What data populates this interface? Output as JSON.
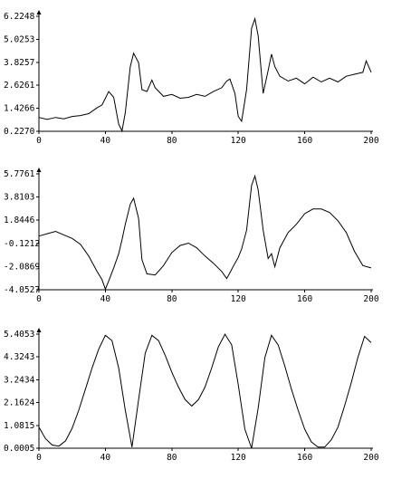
{
  "chart_data": [
    {
      "type": "line",
      "x_ticks": [
        "0",
        "40",
        "80",
        "120",
        "160",
        "200"
      ],
      "y_ticks": [
        "6.2248",
        "5.0253",
        "3.8257",
        "2.6261",
        "1.4266",
        "0.2270"
      ],
      "xlim": [
        0,
        200
      ],
      "ylim": [
        0.227,
        6.2248
      ],
      "grid": false,
      "series": [
        {
          "x": [
            0,
            5,
            10,
            15,
            20,
            25,
            30,
            35,
            38,
            40,
            42,
            45,
            48,
            50,
            52,
            55,
            57,
            60,
            62,
            65,
            68,
            70,
            75,
            80,
            85,
            90,
            95,
            100,
            105,
            110,
            113,
            115,
            118,
            120,
            122,
            125,
            128,
            130,
            132,
            135,
            138,
            140,
            142,
            145,
            150,
            155,
            160,
            165,
            170,
            175,
            180,
            185,
            190,
            195,
            197,
            200
          ],
          "y": [
            0.95,
            0.85,
            0.95,
            0.88,
            1.0,
            1.05,
            1.15,
            1.45,
            1.6,
            1.95,
            2.3,
            2.0,
            0.6,
            0.25,
            1.2,
            3.6,
            4.3,
            3.8,
            2.4,
            2.3,
            2.9,
            2.5,
            2.05,
            2.15,
            1.95,
            2.0,
            2.15,
            2.05,
            2.3,
            2.5,
            2.85,
            2.95,
            2.2,
            1.0,
            0.75,
            2.4,
            5.6,
            6.1,
            5.2,
            2.2,
            3.4,
            4.25,
            3.6,
            3.1,
            2.85,
            3.0,
            2.7,
            3.05,
            2.8,
            3.0,
            2.8,
            3.1,
            3.2,
            3.3,
            3.9,
            3.3
          ]
        }
      ]
    },
    {
      "type": "line",
      "x_ticks": [
        "0",
        "40",
        "80",
        "120",
        "160",
        "200"
      ],
      "y_ticks": [
        "5.7761",
        "3.8103",
        "1.8446",
        "-0.1212",
        "-2.0869",
        "-4.0527"
      ],
      "xlim": [
        0,
        200
      ],
      "ylim": [
        -4.0527,
        5.7761
      ],
      "grid": false,
      "series": [
        {
          "x": [
            0,
            5,
            10,
            15,
            20,
            25,
            30,
            35,
            38,
            40,
            42,
            45,
            48,
            50,
            52,
            55,
            57,
            60,
            62,
            65,
            70,
            75,
            80,
            85,
            90,
            95,
            100,
            105,
            110,
            113,
            115,
            118,
            120,
            122,
            125,
            128,
            130,
            132,
            135,
            138,
            140,
            142,
            145,
            150,
            155,
            160,
            165,
            170,
            175,
            180,
            185,
            190,
            195,
            200
          ],
          "y": [
            0.5,
            0.7,
            0.9,
            0.6,
            0.3,
            -0.2,
            -1.2,
            -2.5,
            -3.2,
            -4.0,
            -3.3,
            -2.2,
            -1.0,
            0.2,
            1.5,
            3.2,
            3.7,
            2.0,
            -1.5,
            -2.7,
            -2.8,
            -2.0,
            -0.9,
            -0.3,
            -0.1,
            -0.5,
            -1.2,
            -1.8,
            -2.5,
            -3.1,
            -2.6,
            -1.8,
            -1.3,
            -0.6,
            1.0,
            4.8,
            5.6,
            4.4,
            1.0,
            -1.4,
            -1.0,
            -2.1,
            -0.5,
            0.8,
            1.5,
            2.4,
            2.8,
            2.8,
            2.5,
            1.8,
            0.8,
            -0.8,
            -2.0,
            -2.2
          ]
        }
      ]
    },
    {
      "type": "line",
      "x_ticks": [
        "0",
        "40",
        "80",
        "120",
        "160",
        "200"
      ],
      "y_ticks": [
        "5.4053",
        "4.3243",
        "3.2434",
        "2.1624",
        "1.0815",
        "0.0005"
      ],
      "xlim": [
        0,
        200
      ],
      "ylim": [
        0.0005,
        5.4053
      ],
      "grid": false,
      "series": [
        {
          "x": [
            0,
            4,
            8,
            12,
            16,
            20,
            24,
            28,
            32,
            36,
            40,
            44,
            48,
            52,
            56,
            60,
            64,
            68,
            72,
            76,
            80,
            84,
            88,
            92,
            96,
            100,
            104,
            108,
            112,
            116,
            120,
            124,
            128,
            132,
            136,
            140,
            144,
            148,
            152,
            156,
            160,
            164,
            168,
            172,
            176,
            180,
            184,
            188,
            192,
            196,
            200
          ],
          "y": [
            1.0,
            0.45,
            0.15,
            0.1,
            0.35,
            0.95,
            1.8,
            2.8,
            3.8,
            4.7,
            5.35,
            5.1,
            3.8,
            1.8,
            0.05,
            2.3,
            4.5,
            5.35,
            5.1,
            4.4,
            3.6,
            2.9,
            2.3,
            2.0,
            2.3,
            2.9,
            3.8,
            4.8,
            5.4,
            4.9,
            3.0,
            0.9,
            0.0,
            1.9,
            4.3,
            5.35,
            4.9,
            3.9,
            2.8,
            1.8,
            0.9,
            0.3,
            0.05,
            0.05,
            0.4,
            1.0,
            2.0,
            3.1,
            4.3,
            5.3,
            5.0
          ]
        }
      ]
    }
  ]
}
